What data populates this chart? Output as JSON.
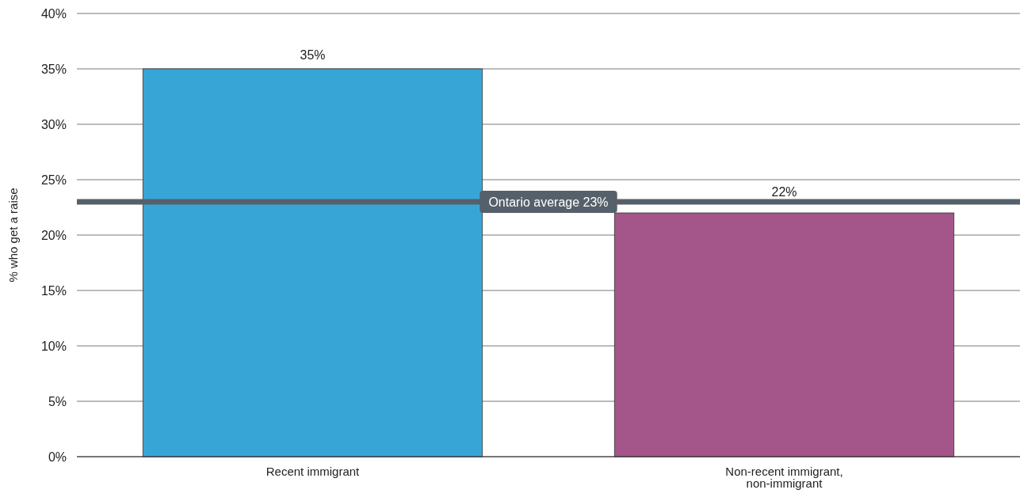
{
  "chart_data": {
    "type": "bar",
    "ylabel": "% who get a raise",
    "categories": [
      "Recent immigrant",
      "Non-recent immigrant, non-immigrant"
    ],
    "values": [
      35,
      22
    ],
    "colors": [
      "#37a6d6",
      "#a4558a"
    ],
    "value_labels": [
      "35%",
      "22%"
    ],
    "ylim": [
      0,
      40
    ],
    "yticks": [
      {
        "value": 0,
        "label": "0%"
      },
      {
        "value": 5,
        "label": "5%"
      },
      {
        "value": 10,
        "label": "10%"
      },
      {
        "value": 15,
        "label": "15%"
      },
      {
        "value": 20,
        "label": "20%"
      },
      {
        "value": 25,
        "label": "25%"
      },
      {
        "value": 30,
        "label": "30%"
      },
      {
        "value": 35,
        "label": "35%"
      },
      {
        "value": 40,
        "label": "40%"
      }
    ],
    "grid": "y",
    "ref_lines": [
      {
        "axis": "y",
        "value": 23,
        "label": "Ontario average 23%",
        "color": "#56606a"
      }
    ]
  }
}
